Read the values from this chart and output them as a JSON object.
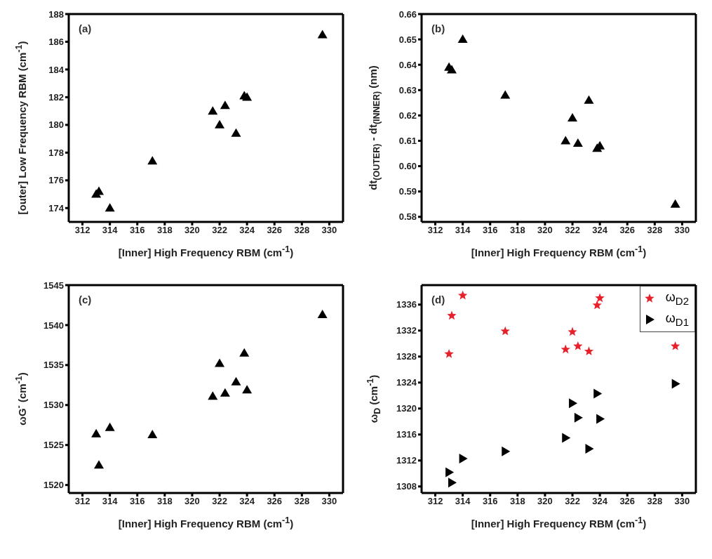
{
  "chart_data": [
    {
      "type": "scatter",
      "xlabel": "[Inner] High Frequency RBM (cm$^{-1}$)",
      "ylabel": "[outer] Low Frequency RBM (cm$^{-1}$)",
      "annotations": [
        "(a)"
      ],
      "marker": "triangle",
      "grid": false,
      "legend": false,
      "x": [
        313.0,
        313.2,
        314.0,
        317.1,
        321.5,
        322.0,
        322.4,
        323.2,
        323.8,
        324.0,
        329.5
      ],
      "series": [
        {
          "color": "#000000",
          "values": [
            175.0,
            175.2,
            174.0,
            177.4,
            181.0,
            180.0,
            181.4,
            179.4,
            182.1,
            182.0,
            186.5
          ]
        }
      ],
      "xlim": [
        311,
        331
      ],
      "xticks": [
        312,
        314,
        316,
        318,
        320,
        322,
        324,
        326,
        328,
        330
      ],
      "ylim": [
        173,
        188
      ],
      "yticks": [
        174,
        176,
        178,
        180,
        182,
        184,
        186,
        188
      ]
    },
    {
      "type": "scatter",
      "xlabel": "[Inner] High Frequency RBM (cm$^{-1}$)",
      "ylabel": "dt$_{(OUTER)}$ - dt$_{(INNER)}$  (nm)",
      "annotations": [
        "(b)"
      ],
      "marker": "triangle",
      "grid": false,
      "legend": false,
      "x": [
        313.0,
        313.2,
        314.0,
        317.1,
        321.5,
        322.0,
        322.4,
        323.2,
        323.8,
        324.0,
        329.5
      ],
      "series": [
        {
          "color": "#000000",
          "values": [
            0.639,
            0.638,
            0.65,
            0.628,
            0.61,
            0.619,
            0.609,
            0.626,
            0.607,
            0.608,
            0.585
          ]
        }
      ],
      "xlim": [
        311,
        331
      ],
      "xticks": [
        312,
        314,
        316,
        318,
        320,
        322,
        324,
        326,
        328,
        330
      ],
      "ylim": [
        0.578,
        0.66
      ],
      "yticks": [
        {
          "value": 0.58,
          "label": "0.58"
        },
        {
          "value": 0.59,
          "label": "0.59"
        },
        {
          "value": 0.6,
          "label": "0.60"
        },
        {
          "value": 0.61,
          "label": "0.61"
        },
        {
          "value": 0.62,
          "label": "0.62"
        },
        {
          "value": 0.63,
          "label": "0.63"
        },
        {
          "value": 0.64,
          "label": "0.64"
        },
        {
          "value": 0.65,
          "label": "0.65"
        },
        {
          "value": 0.66,
          "label": "0.66"
        }
      ]
    },
    {
      "type": "scatter",
      "xlabel": "[Inner] High Frequency RBM (cm$^{-1}$)",
      "ylabel": "ωG$^{-}$  (cm$^{-1}$)",
      "annotations": [
        "(c)"
      ],
      "marker": "triangle",
      "grid": false,
      "legend": false,
      "x": [
        313.0,
        313.2,
        314.0,
        317.1,
        321.5,
        322.0,
        322.4,
        323.2,
        323.8,
        324.0,
        329.5
      ],
      "series": [
        {
          "color": "#000000",
          "values": [
            1526.4,
            1522.5,
            1527.2,
            1526.3,
            1531.1,
            1535.2,
            1531.5,
            1532.9,
            1536.5,
            1531.9,
            1541.3
          ]
        }
      ],
      "xlim": [
        311,
        331
      ],
      "xticks": [
        312,
        314,
        316,
        318,
        320,
        322,
        324,
        326,
        328,
        330
      ],
      "ylim": [
        1519,
        1545
      ],
      "yticks": [
        1520,
        1525,
        1530,
        1535,
        1540,
        1545
      ]
    },
    {
      "type": "scatter",
      "xlabel": "[Inner] High Frequency RBM (cm$^{-1}$)",
      "ylabel": "ω$_{D}$ (cm$^{-1}$)",
      "annotations": [
        "(d)"
      ],
      "grid": false,
      "legend": "top right",
      "x": [
        313.0,
        313.2,
        314.0,
        317.1,
        321.5,
        322.0,
        322.4,
        323.2,
        323.8,
        324.0,
        329.5
      ],
      "series": [
        {
          "name": "ω$_{D2}$",
          "color": "#e8202a",
          "marker": "star",
          "values": [
            1328.4,
            1334.3,
            1337.4,
            1331.9,
            1329.1,
            1331.8,
            1329.6,
            1328.8,
            1335.9,
            1337.0,
            1329.6
          ]
        },
        {
          "name": "ω$_{D1}$",
          "color": "#000000",
          "marker": "triangle-right",
          "values": [
            1310.2,
            1308.6,
            1312.3,
            1313.4,
            1315.5,
            1320.8,
            1318.6,
            1313.8,
            1322.3,
            1318.4,
            1323.8
          ]
        }
      ],
      "xlim": [
        311,
        331
      ],
      "xticks": [
        312,
        314,
        316,
        318,
        320,
        322,
        324,
        326,
        328,
        330
      ],
      "ylim": [
        1307,
        1339
      ],
      "yticks": [
        1308,
        1312,
        1316,
        1320,
        1324,
        1328,
        1332,
        1336
      ]
    }
  ]
}
